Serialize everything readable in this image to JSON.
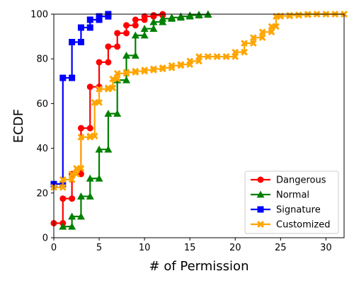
{
  "chart_data": {
    "type": "line",
    "title": "",
    "xlabel": "# of Permission",
    "ylabel": "ECDF",
    "xlim": [
      0,
      32
    ],
    "ylim": [
      0,
      100
    ],
    "x_ticks": [
      0,
      5,
      10,
      15,
      20,
      25,
      30
    ],
    "y_ticks": [
      0,
      20,
      40,
      60,
      80,
      100
    ],
    "grid": false,
    "legend_position": "lower-right",
    "series": [
      {
        "name": "Dangerous",
        "color": "#ff0000",
        "marker": "circle",
        "x": [
          0,
          1,
          2,
          3,
          4,
          5,
          6,
          7,
          8,
          9,
          10,
          11,
          12
        ],
        "y": [
          6.5,
          17.5,
          28.5,
          49,
          67.5,
          78.5,
          85.5,
          91.5,
          95,
          97.5,
          99,
          99.5,
          100
        ]
      },
      {
        "name": "Normal",
        "color": "#008000",
        "marker": "triangle",
        "x": [
          1,
          2,
          3,
          4,
          5,
          6,
          7,
          8,
          9,
          10,
          11,
          12,
          13,
          14,
          15,
          16,
          17
        ],
        "y": [
          5,
          9.5,
          18.5,
          26.5,
          39.5,
          55.5,
          70.5,
          81.5,
          90.5,
          93.5,
          96.5,
          98,
          98.5,
          99,
          99.5,
          99.8,
          100
        ]
      },
      {
        "name": "Signature",
        "color": "#0000ff",
        "marker": "square",
        "x": [
          0,
          1,
          2,
          3,
          4,
          5,
          6
        ],
        "y": [
          24,
          71.5,
          87.5,
          94,
          97.5,
          99,
          100
        ]
      },
      {
        "name": "Customized",
        "color": "#ffa500",
        "marker": "x",
        "x": [
          0,
          1,
          2,
          2.5,
          3,
          4,
          4.5,
          5,
          6,
          6.5,
          7,
          8,
          9,
          10,
          11,
          12,
          13,
          14,
          15,
          16,
          17,
          18,
          19,
          20,
          21,
          22,
          23,
          24,
          24.5,
          25,
          26,
          27,
          28,
          29,
          30,
          31,
          32
        ],
        "y": [
          22.5,
          26,
          28.5,
          31,
          45,
          45.5,
          60.5,
          66.5,
          67,
          71,
          73.5,
          74,
          74.5,
          75,
          75.5,
          76,
          77,
          77.5,
          79,
          81,
          81,
          81,
          81,
          83,
          87,
          89.5,
          92,
          94.5,
          99,
          99.2,
          99.5,
          99.7,
          100,
          100,
          100,
          100,
          100
        ]
      }
    ]
  }
}
